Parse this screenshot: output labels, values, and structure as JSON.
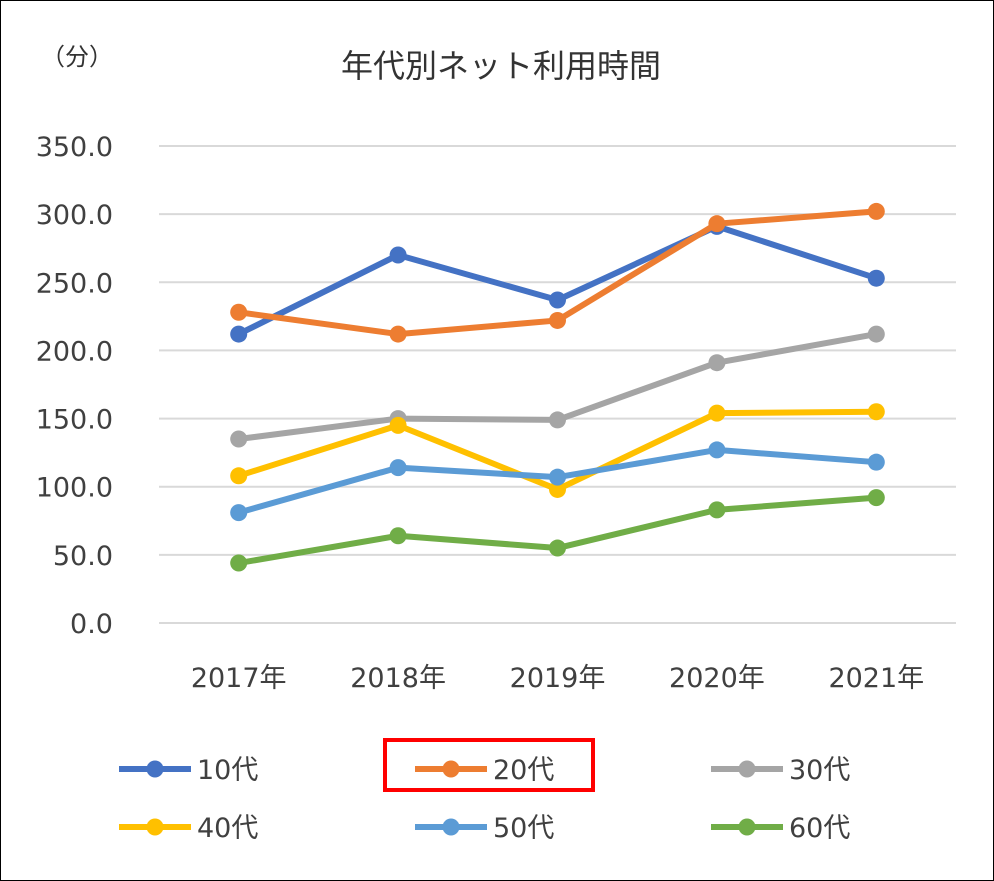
{
  "chart_data": {
    "type": "line",
    "title": "年代別ネット利用時間",
    "unit_label": "（分）",
    "categories": [
      "2017年",
      "2018年",
      "2019年",
      "2020年",
      "2021年"
    ],
    "ylim": [
      0,
      350
    ],
    "yticks": [
      "0.0",
      "50.0",
      "100.0",
      "150.0",
      "200.0",
      "250.0",
      "300.0",
      "350.0"
    ],
    "grid": true,
    "legend_position": "bottom",
    "series": [
      {
        "name": "10代",
        "color": "#4472C4",
        "values": [
          212.0,
          270.0,
          237.0,
          291.0,
          253.0
        ]
      },
      {
        "name": "20代",
        "color": "#ED7D31",
        "values": [
          228.0,
          212.0,
          222.0,
          293.0,
          302.0
        ]
      },
      {
        "name": "30代",
        "color": "#A5A5A5",
        "values": [
          135.0,
          150.0,
          149.0,
          191.0,
          212.0
        ]
      },
      {
        "name": "40代",
        "color": "#FFC000",
        "values": [
          108.0,
          145.0,
          98.0,
          154.0,
          155.0
        ]
      },
      {
        "name": "50代",
        "color": "#5B9BD5",
        "values": [
          81.0,
          114.0,
          107.0,
          127.0,
          118.0
        ]
      },
      {
        "name": "60代",
        "color": "#70AD47",
        "values": [
          44.0,
          64.0,
          55.0,
          83.0,
          92.0
        ]
      }
    ],
    "highlighted_legend": "20代"
  }
}
